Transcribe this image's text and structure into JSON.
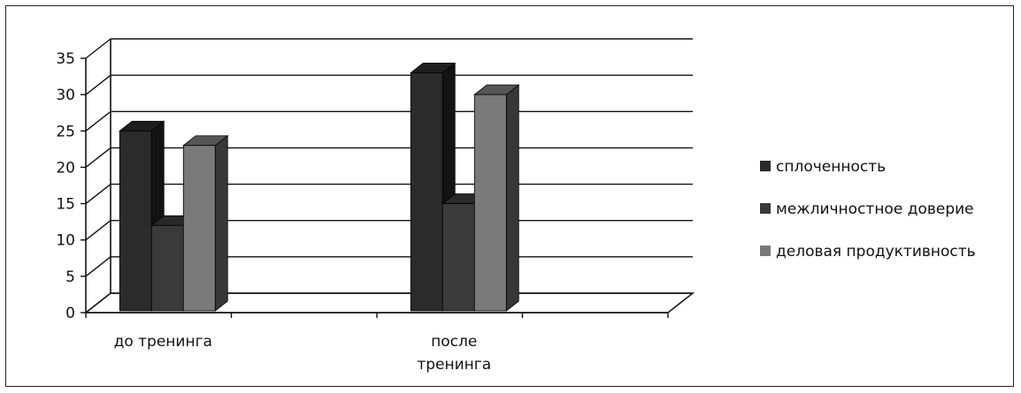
{
  "chart_data": {
    "type": "bar",
    "categories": [
      "до тренинга",
      "после тренинга"
    ],
    "category_lines": [
      [
        "до тренинга"
      ],
      [
        "после",
        "тренинга"
      ]
    ],
    "series": [
      {
        "name": "сплоченность",
        "values": [
          25,
          33
        ],
        "color": "#2b2b2b"
      },
      {
        "name": "межличностное доверие",
        "values": [
          12,
          15
        ],
        "color": "#3a3a3a"
      },
      {
        "name": "деловая продуктивность",
        "values": [
          23,
          30
        ],
        "color": "#7a7a7a"
      }
    ],
    "yticks": [
      "0",
      "5",
      "10",
      "15",
      "20",
      "25",
      "30",
      "35"
    ],
    "ylim": [
      0,
      35
    ],
    "grid": true,
    "legend": "right"
  }
}
